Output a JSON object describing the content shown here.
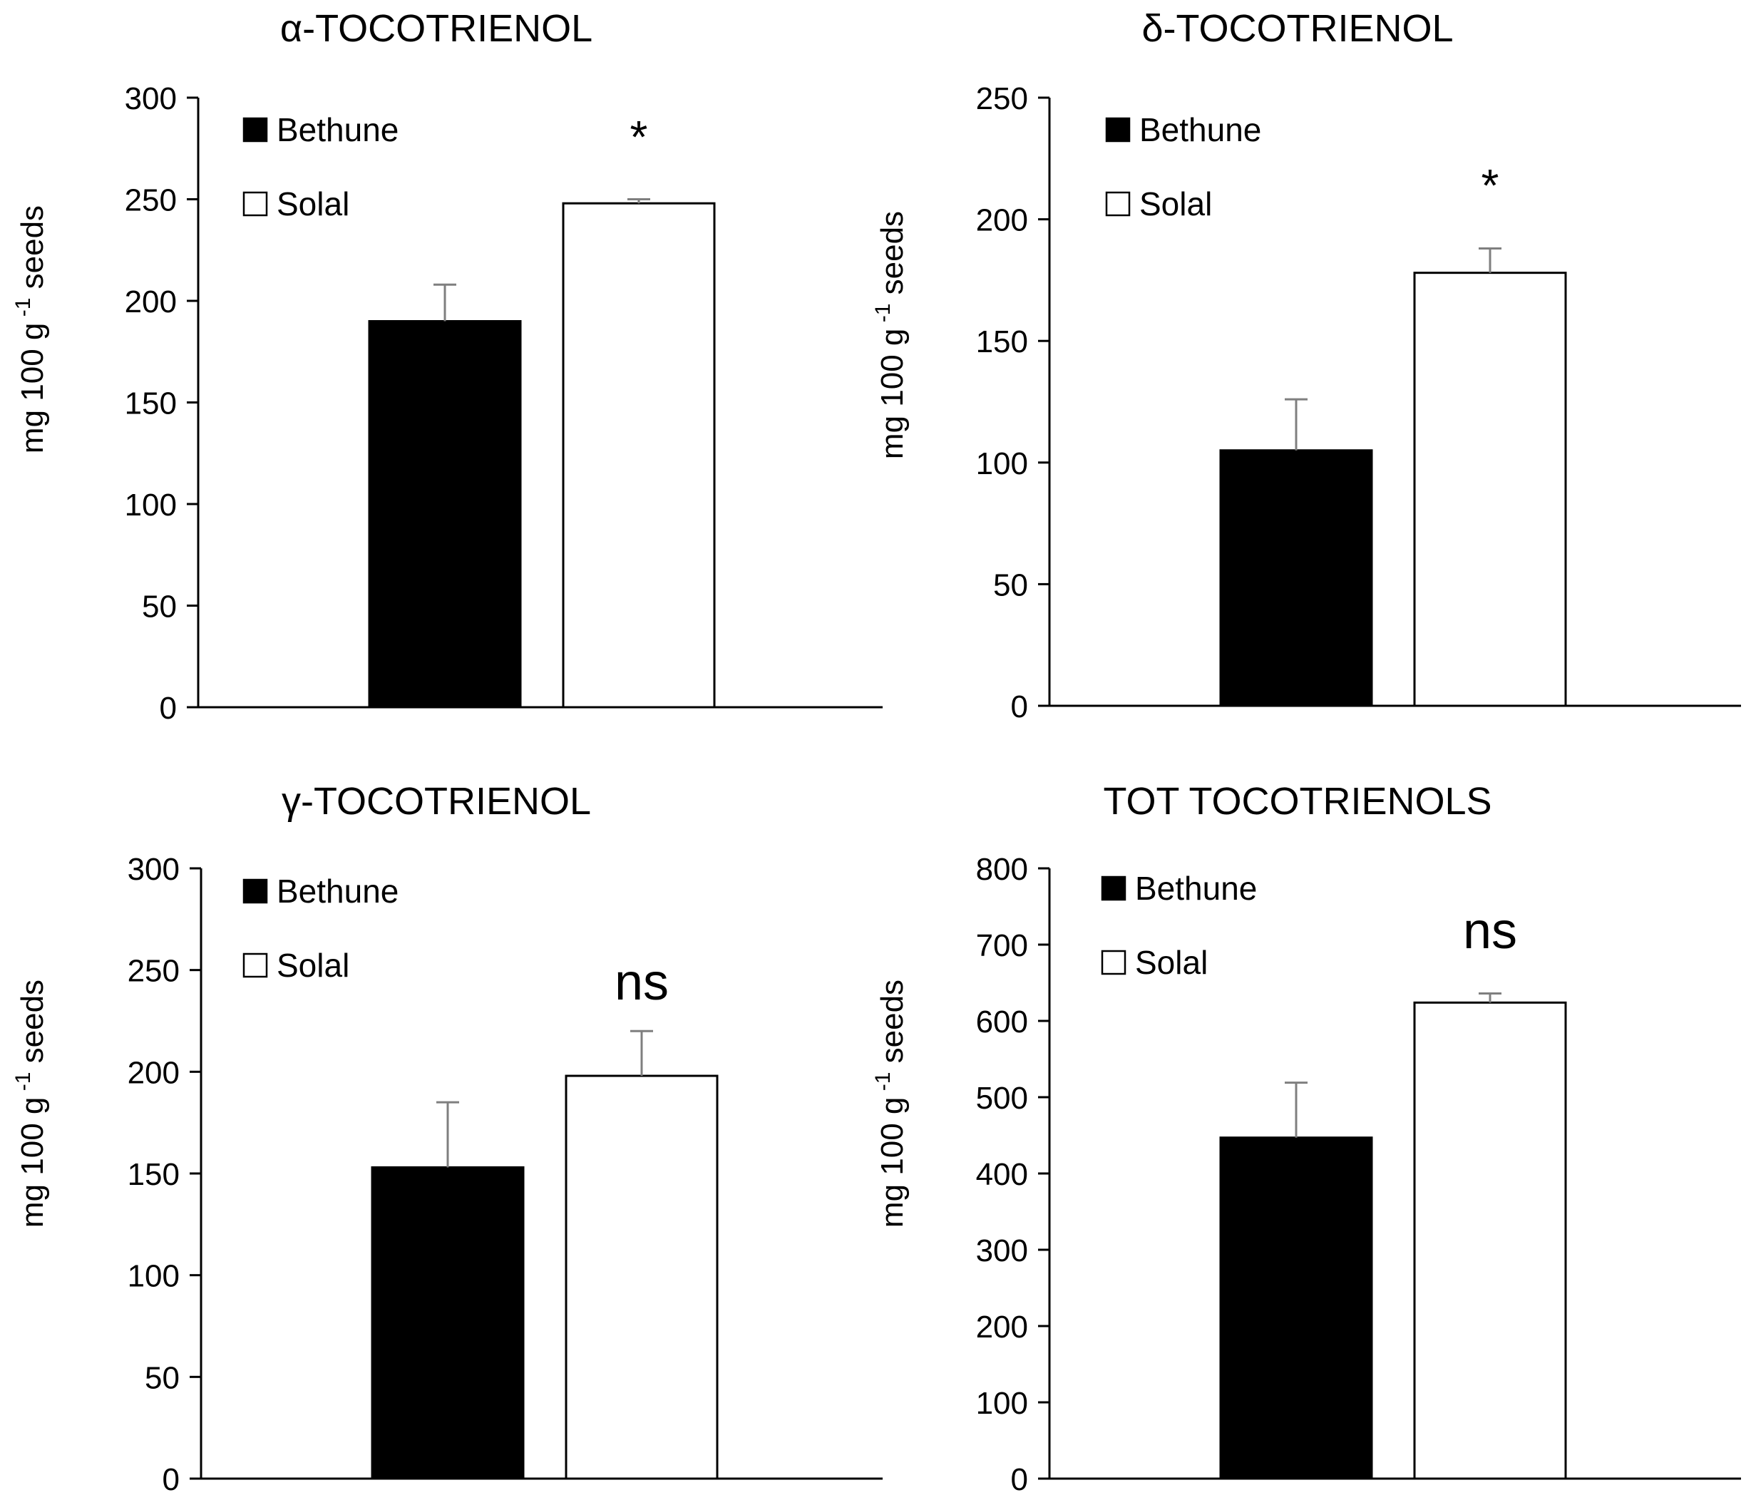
{
  "chart_data": [
    {
      "type": "bar",
      "title": "α-TOCOTRIENOL",
      "ylabel": "mg 100 g",
      "ylabel_sup": "-1",
      "ylabel_suffix": " seeds",
      "ylim": [
        0,
        300
      ],
      "yticks": [
        0,
        50,
        100,
        150,
        200,
        250,
        300
      ],
      "series": [
        {
          "name": "Bethune",
          "value": 190,
          "error": 18,
          "color": "#000000"
        },
        {
          "name": "Solal",
          "value": 248,
          "error": 2,
          "color": "#ffffff"
        }
      ],
      "annotation": "*",
      "legend_position": "top-left",
      "grid": false
    },
    {
      "type": "bar",
      "title": "δ-TOCOTRIENOL",
      "ylabel": "mg  100 g",
      "ylabel_sup": "-1",
      "ylabel_suffix": " seeds",
      "ylim": [
        0,
        250
      ],
      "yticks": [
        0,
        50,
        100,
        150,
        200,
        250
      ],
      "series": [
        {
          "name": "Bethune",
          "value": 105,
          "error": 21,
          "color": "#000000"
        },
        {
          "name": "Solal",
          "value": 178,
          "error": 10,
          "color": "#ffffff"
        }
      ],
      "annotation": "*",
      "legend_position": "top-left",
      "grid": false
    },
    {
      "type": "bar",
      "title": "γ-TOCOTRIENOL",
      "ylabel": "mg  100 g",
      "ylabel_sup": "-1",
      "ylabel_suffix": " seeds",
      "ylim": [
        0,
        300
      ],
      "yticks": [
        0,
        50,
        100,
        150,
        200,
        250,
        300
      ],
      "series": [
        {
          "name": "Bethune",
          "value": 153,
          "error": 32,
          "color": "#000000"
        },
        {
          "name": "Solal",
          "value": 198,
          "error": 22,
          "color": "#ffffff"
        }
      ],
      "annotation": "ns",
      "legend_position": "top-left",
      "grid": false
    },
    {
      "type": "bar",
      "title": "TOT TOCOTRIENOLS",
      "ylabel": "mg  100 g",
      "ylabel_sup": "-1",
      "ylabel_suffix": " seeds",
      "ylim": [
        0,
        800
      ],
      "yticks": [
        0,
        100,
        200,
        300,
        400,
        500,
        600,
        700,
        800
      ],
      "series": [
        {
          "name": "Bethune",
          "value": 447,
          "error": 72,
          "color": "#000000"
        },
        {
          "name": "Solal",
          "value": 624,
          "error": 12,
          "color": "#ffffff"
        }
      ],
      "annotation": "ns",
      "legend_position": "top-left",
      "grid": false
    }
  ]
}
